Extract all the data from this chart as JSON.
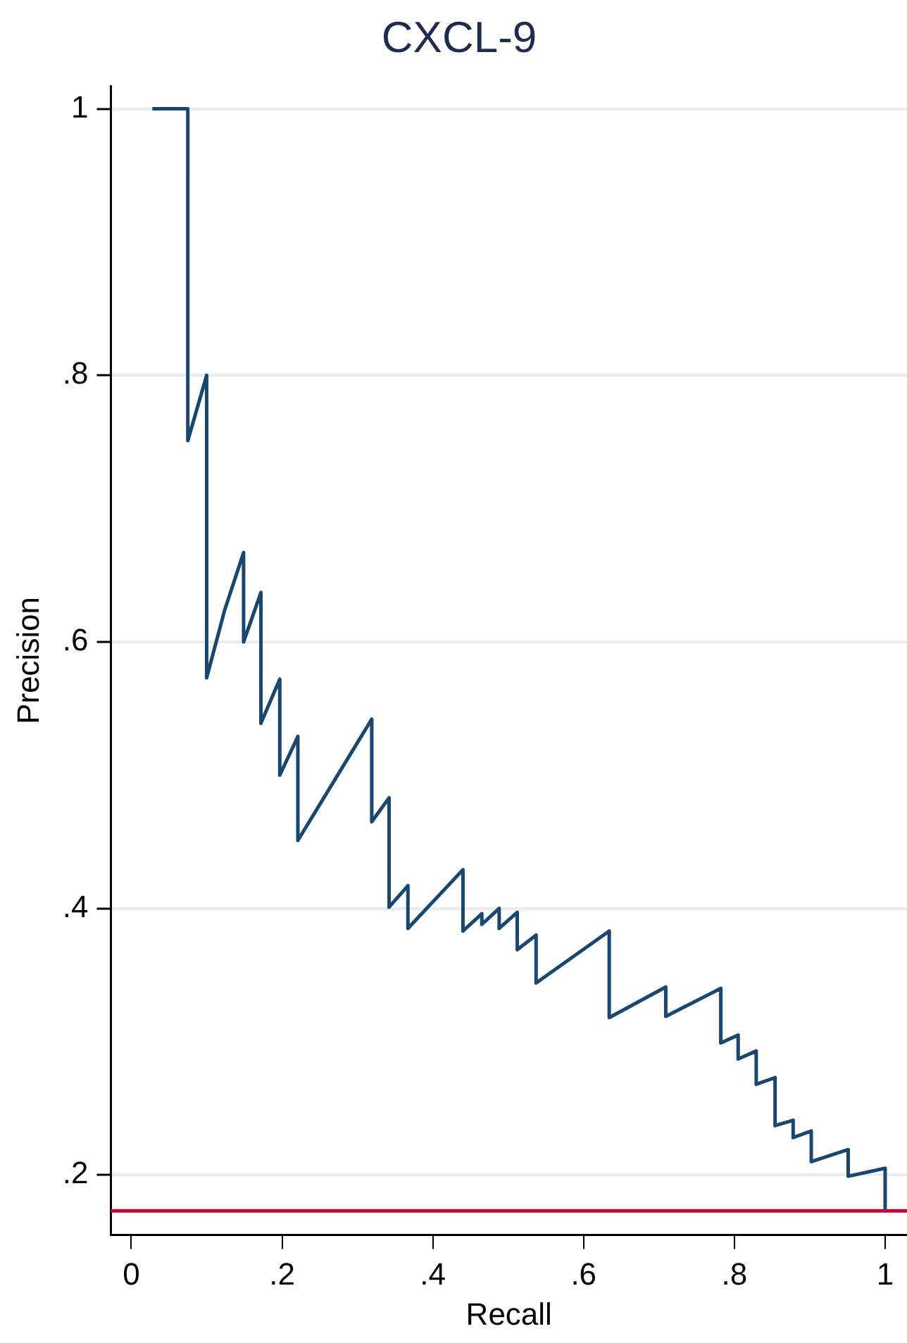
{
  "chart_data": {
    "type": "line",
    "title": "CXCL-9",
    "xlabel": "Recall",
    "ylabel": "Precision",
    "xlim": [
      -0.027,
      1.029
    ],
    "ylim": [
      0.155,
      1.017
    ],
    "xticks": [
      0,
      {
        "value": 0.2,
        "label": ".2"
      },
      {
        "value": 0.4,
        "label": ".4"
      },
      {
        "value": 0.6,
        "label": ".6"
      },
      {
        "value": 0.8,
        "label": ".8"
      },
      1
    ],
    "yticks": [
      {
        "value": 0.2,
        "label": ".2"
      },
      {
        "value": 0.4,
        "label": ".4"
      },
      {
        "value": 0.6,
        "label": ".6"
      },
      {
        "value": 0.8,
        "label": ".8"
      },
      1
    ],
    "grid": "y",
    "series": [
      {
        "color": "#1a476f",
        "x": [
          0.028,
          0.075,
          0.075,
          0.1,
          0.1,
          0.124,
          0.149,
          0.149,
          0.172,
          0.172,
          0.197,
          0.197,
          0.221,
          0.221,
          0.319,
          0.319,
          0.342,
          0.342,
          0.367,
          0.367,
          0.44,
          0.44,
          0.465,
          0.465,
          0.488,
          0.488,
          0.512,
          0.512,
          0.537,
          0.537,
          0.634,
          0.634,
          0.709,
          0.709,
          0.782,
          0.782,
          0.805,
          0.805,
          0.829,
          0.829,
          0.854,
          0.854,
          0.878,
          0.878,
          0.902,
          0.902,
          0.951,
          0.951,
          1,
          1
        ],
        "values": [
          1,
          1,
          0.751,
          0.8,
          0.573,
          0.624,
          0.667,
          0.6,
          0.637,
          0.539,
          0.572,
          0.5,
          0.529,
          0.451,
          0.542,
          0.465,
          0.483,
          0.401,
          0.417,
          0.385,
          0.429,
          0.383,
          0.396,
          0.388,
          0.4,
          0.385,
          0.397,
          0.369,
          0.38,
          0.344,
          0.383,
          0.318,
          0.341,
          0.319,
          0.34,
          0.299,
          0.305,
          0.287,
          0.293,
          0.268,
          0.273,
          0.237,
          0.241,
          0.228,
          0.233,
          0.21,
          0.219,
          0.199,
          0.205,
          0.173
        ]
      }
    ],
    "ref_lines": [
      {
        "axis": "y",
        "value": 0.173,
        "color": "#c10534"
      }
    ]
  }
}
